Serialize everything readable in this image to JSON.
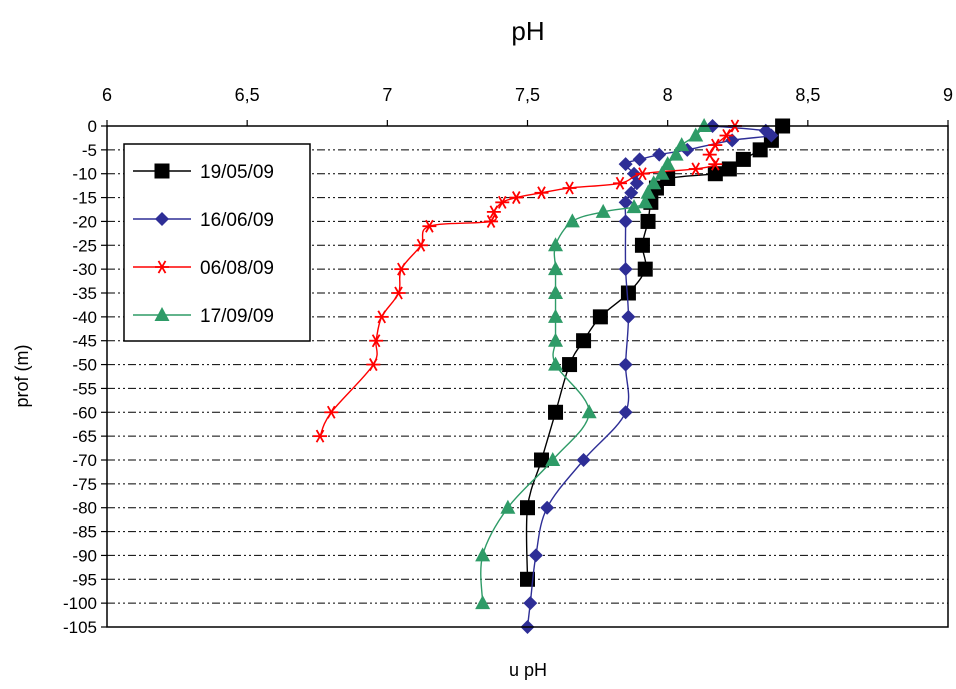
{
  "chart_data": {
    "type": "line",
    "title": "pH",
    "xlabel": "u pH",
    "ylabel": "prof (m)",
    "xlim": [
      6,
      9
    ],
    "ylim": [
      -105,
      0
    ],
    "x_ticks": [
      "6",
      "6,5",
      "7",
      "7,5",
      "8",
      "8,5",
      "9"
    ],
    "x_tick_values": [
      6,
      6.5,
      7,
      7.5,
      8,
      8.5,
      9
    ],
    "y_ticks": [
      "0",
      "-5",
      "-10",
      "-15",
      "-20",
      "-25",
      "-30",
      "-35",
      "-40",
      "-45",
      "-50",
      "-55",
      "-60",
      "-65",
      "-70",
      "-75",
      "-80",
      "-85",
      "-90",
      "-95",
      "-100",
      "-105"
    ],
    "y_tick_values": [
      0,
      -5,
      -10,
      -15,
      -20,
      -25,
      -30,
      -35,
      -40,
      -45,
      -50,
      -55,
      -60,
      -65,
      -70,
      -75,
      -80,
      -85,
      -90,
      -95,
      -100,
      -105
    ],
    "grid": "horizontal dash-dot",
    "legend_position": "top-left",
    "series": [
      {
        "name": "19/05/09",
        "color": "#000000",
        "marker": "square",
        "points": [
          [
            8.41,
            0
          ],
          [
            8.37,
            -3
          ],
          [
            8.33,
            -5
          ],
          [
            8.27,
            -7
          ],
          [
            8.22,
            -9
          ],
          [
            8.17,
            -10
          ],
          [
            8.0,
            -11
          ],
          [
            7.96,
            -13
          ],
          [
            7.94,
            -16
          ],
          [
            7.93,
            -20
          ],
          [
            7.91,
            -25
          ],
          [
            7.92,
            -30
          ],
          [
            7.86,
            -35
          ],
          [
            7.76,
            -40
          ],
          [
            7.7,
            -45
          ],
          [
            7.65,
            -50
          ],
          [
            7.6,
            -60
          ],
          [
            7.55,
            -70
          ],
          [
            7.5,
            -80
          ],
          [
            7.5,
            -95
          ]
        ]
      },
      {
        "name": "16/06/09",
        "color": "#2e2e96",
        "marker": "diamond",
        "points": [
          [
            8.16,
            0
          ],
          [
            8.35,
            -1
          ],
          [
            8.37,
            -2
          ],
          [
            8.23,
            -3
          ],
          [
            8.07,
            -5
          ],
          [
            7.97,
            -6
          ],
          [
            7.9,
            -7
          ],
          [
            7.85,
            -8
          ],
          [
            7.88,
            -10
          ],
          [
            7.89,
            -12
          ],
          [
            7.87,
            -14
          ],
          [
            7.85,
            -16
          ],
          [
            7.85,
            -20
          ],
          [
            7.85,
            -30
          ],
          [
            7.86,
            -40
          ],
          [
            7.85,
            -50
          ],
          [
            7.85,
            -60
          ],
          [
            7.7,
            -70
          ],
          [
            7.57,
            -80
          ],
          [
            7.53,
            -90
          ],
          [
            7.51,
            -100
          ],
          [
            7.5,
            -105
          ]
        ]
      },
      {
        "name": "06/08/09",
        "color": "#ff0000",
        "marker": "asterisk",
        "points": [
          [
            8.24,
            0
          ],
          [
            8.21,
            -2
          ],
          [
            8.17,
            -4
          ],
          [
            8.15,
            -6
          ],
          [
            8.17,
            -8
          ],
          [
            8.1,
            -9
          ],
          [
            7.91,
            -10
          ],
          [
            7.83,
            -12
          ],
          [
            7.65,
            -13
          ],
          [
            7.55,
            -14
          ],
          [
            7.46,
            -15
          ],
          [
            7.41,
            -16
          ],
          [
            7.38,
            -18
          ],
          [
            7.37,
            -20
          ],
          [
            7.15,
            -21
          ],
          [
            7.12,
            -25
          ],
          [
            7.05,
            -30
          ],
          [
            7.04,
            -35
          ],
          [
            6.98,
            -40
          ],
          [
            6.96,
            -45
          ],
          [
            6.95,
            -50
          ],
          [
            6.8,
            -60
          ],
          [
            6.76,
            -65
          ]
        ]
      },
      {
        "name": "17/09/09",
        "color": "#2e9b67",
        "marker": "triangle",
        "points": [
          [
            8.13,
            0
          ],
          [
            8.1,
            -2
          ],
          [
            8.05,
            -4
          ],
          [
            8.03,
            -6
          ],
          [
            8.0,
            -8
          ],
          [
            7.98,
            -10
          ],
          [
            7.95,
            -12
          ],
          [
            7.93,
            -14
          ],
          [
            7.92,
            -16
          ],
          [
            7.88,
            -17
          ],
          [
            7.77,
            -18
          ],
          [
            7.66,
            -20
          ],
          [
            7.6,
            -25
          ],
          [
            7.6,
            -30
          ],
          [
            7.6,
            -35
          ],
          [
            7.6,
            -40
          ],
          [
            7.6,
            -45
          ],
          [
            7.6,
            -50
          ],
          [
            7.72,
            -60
          ],
          [
            7.59,
            -70
          ],
          [
            7.43,
            -80
          ],
          [
            7.34,
            -90
          ],
          [
            7.34,
            -100
          ]
        ]
      }
    ]
  }
}
